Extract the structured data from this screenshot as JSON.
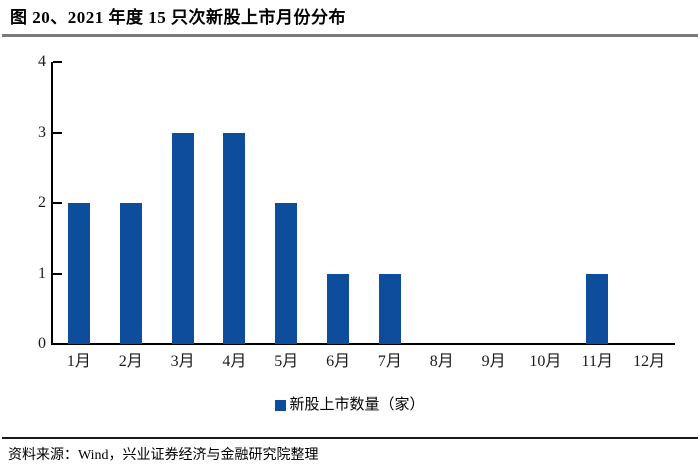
{
  "header": {
    "title": "图 20、2021 年度 15 只次新股上市月份分布"
  },
  "chart_data": {
    "type": "bar",
    "categories": [
      "1月",
      "2月",
      "3月",
      "4月",
      "5月",
      "6月",
      "7月",
      "8月",
      "9月",
      "10月",
      "11月",
      "12月"
    ],
    "values": [
      2,
      2,
      3,
      3,
      2,
      1,
      1,
      0,
      0,
      0,
      1,
      0
    ],
    "series_name": "新股上市数量（家）",
    "title": "2021 年度 15 只次新股上市月份分布",
    "xlabel": "",
    "ylabel": "",
    "ylim": [
      0,
      4
    ],
    "yticks": [
      0,
      1,
      2,
      3,
      4
    ],
    "grid": false,
    "legend_position": "bottom",
    "bar_color": "#0E4D9C"
  },
  "legend": {
    "label": "新股上市数量（家）",
    "swatch_color": "#0E4D9C"
  },
  "footer": {
    "source": "资料来源：Wind，兴业证券经济与金融研究院整理"
  }
}
